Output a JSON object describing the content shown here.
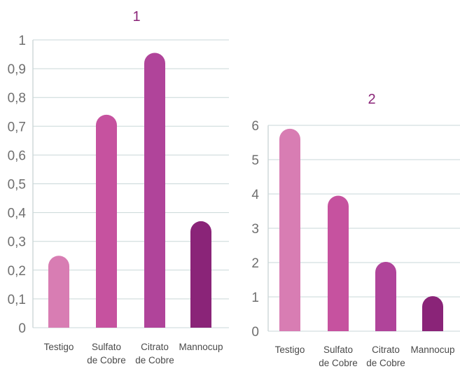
{
  "chart_data": [
    {
      "type": "bar",
      "title": "1",
      "categories": [
        [
          "Testigo"
        ],
        [
          "Sulfato",
          "de Cobre"
        ],
        [
          "Citrato",
          "de Cobre"
        ],
        [
          "Mannocup"
        ]
      ],
      "values": [
        0.25,
        0.74,
        0.955,
        0.37
      ],
      "ylim": [
        0,
        1
      ],
      "yticks": [
        "0",
        "0,1",
        "0,2",
        "0,3",
        "0,4",
        "0,5",
        "0,6",
        "0,7",
        "0,8",
        "0,9",
        "1"
      ],
      "grid": true,
      "colors": [
        "#d87db3",
        "#c6529f",
        "#b0449a",
        "#8a2478"
      ],
      "title_color": "#8a2478"
    },
    {
      "type": "bar",
      "title": "2",
      "categories": [
        [
          "Testigo"
        ],
        [
          "Sulfato",
          "de Cobre"
        ],
        [
          "Citrato",
          "de Cobre"
        ],
        [
          "Mannocup"
        ]
      ],
      "values": [
        5.9,
        3.95,
        2.02,
        1.02
      ],
      "ylim": [
        0,
        6
      ],
      "yticks": [
        "0",
        "1",
        "2",
        "3",
        "4",
        "5",
        "6"
      ],
      "grid": true,
      "colors": [
        "#d87db3",
        "#c6529f",
        "#b0449a",
        "#8a2478"
      ],
      "title_color": "#8a2478"
    }
  ]
}
